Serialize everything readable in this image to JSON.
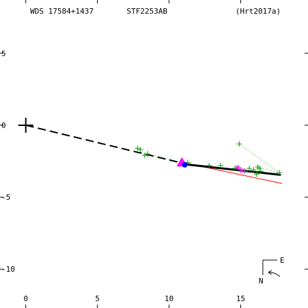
{
  "chart_data": {
    "type": "scatter",
    "header": {
      "left": "WDS 17584+1437",
      "center": "STF2253AB",
      "right": "(Hrt2017a)"
    },
    "x_ticks": [
      "0",
      "5",
      "10",
      "15"
    ],
    "y_ticks": [
      "5",
      "0",
      "-5",
      "-10"
    ],
    "xlim": [
      -1.8,
      19.7
    ],
    "ylim": [
      -12.7,
      8.7
    ],
    "compass": {
      "east": "E",
      "north": "N"
    },
    "primary_position": [
      0,
      0
    ],
    "colors": {
      "observations": "#00a000",
      "orbit_prediction": "#ff0000",
      "fit_line": "#000000",
      "dashed_line": "#000000",
      "highlight_triangle": "#ff00ff",
      "highlight_circle": "#0000ff",
      "highlight_star": "#ff00ff"
    },
    "series": [
      {
        "points": [
          [
            7.8,
            -1.6
          ],
          [
            8.0,
            -1.7
          ],
          [
            8.3,
            -2.1
          ],
          [
            8.5,
            -2.0
          ],
          [
            11.0,
            -2.7
          ],
          [
            11.3,
            -2.6
          ],
          [
            12.8,
            -2.8
          ],
          [
            13.6,
            -2.8
          ],
          [
            14.6,
            -3.0
          ],
          [
            14.9,
            -1.3
          ],
          [
            15.0,
            -3.1
          ],
          [
            15.3,
            -3.2
          ],
          [
            15.6,
            -3.0
          ],
          [
            15.9,
            -3.1
          ],
          [
            16.1,
            -3.4
          ],
          [
            16.2,
            -2.9
          ],
          [
            16.3,
            -3.0
          ],
          [
            16.4,
            -3.2
          ],
          [
            17.7,
            -3.3
          ]
        ]
      },
      {
        "points": [
          [
            10.9,
            -2.6
          ]
        ]
      },
      {
        "points": [
          [
            11.1,
            -2.75
          ]
        ]
      },
      {
        "points": [
          [
            14.8,
            -2.95
          ],
          [
            15.1,
            -3.15
          ]
        ]
      }
    ],
    "fit_line": [
      [
        11.0,
        -2.7
      ],
      [
        17.8,
        -3.45
      ]
    ],
    "dashed_line": [
      [
        0,
        0
      ],
      [
        11.0,
        -2.65
      ]
    ],
    "orbit_line": [
      [
        11.0,
        -2.6
      ],
      [
        17.9,
        -4.05
      ]
    ],
    "dotted_connectors": [
      [
        [
          7.8,
          -1.6
        ],
        [
          8.3,
          -2.1
        ]
      ],
      [
        [
          8.5,
          -2.0
        ],
        [
          11.0,
          -2.6
        ]
      ],
      [
        [
          14.9,
          -1.3
        ],
        [
          17.7,
          -3.3
        ]
      ],
      [
        [
          16.2,
          -2.9
        ],
        [
          17.7,
          -3.3
        ]
      ]
    ]
  }
}
